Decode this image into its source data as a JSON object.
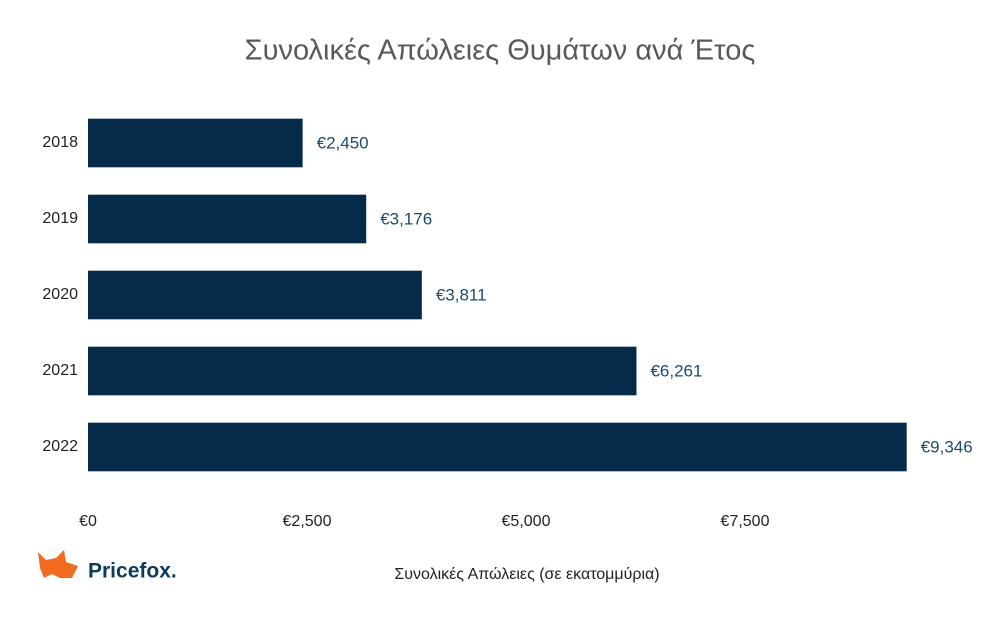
{
  "chart_data": {
    "type": "hbar",
    "title": "Συνολικές Απώλειες Θυμάτων ανά Έτος",
    "x_label": "Συνολικές Απώλειες (σε εκατομμύρια)",
    "categories": [
      "2018",
      "2019",
      "2020",
      "2021",
      "2022"
    ],
    "values": [
      2450,
      3176,
      3811,
      6261,
      9346
    ],
    "value_labels": [
      "€2,450",
      "€3,176",
      "€3,811",
      "€6,261",
      "€9,346"
    ],
    "color": "#062a4a",
    "xlim": [
      0,
      10000
    ],
    "xticks": [
      {
        "value": 0,
        "label": "€0"
      },
      {
        "value": 2500,
        "label": "€2,500"
      },
      {
        "value": 5000,
        "label": "€5,000"
      },
      {
        "value": 7500,
        "label": "€7,500"
      }
    ]
  },
  "logo": "Pricefox."
}
